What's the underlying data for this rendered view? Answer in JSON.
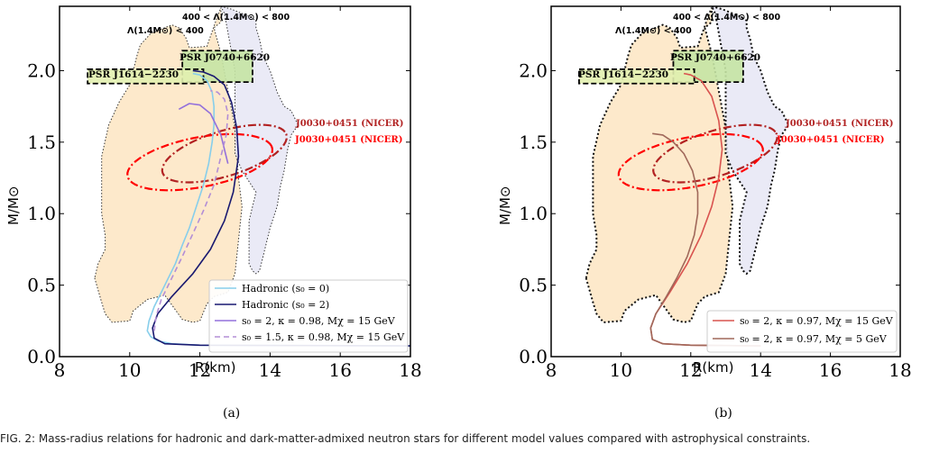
{
  "caption": "FIG. 2: Mass-radius relations for hadronic and dark-matter-admixed neutron stars for different model values compared with astrophysical constraints.",
  "chart_data": [
    {
      "type": "line",
      "panel_label": "(a)",
      "xlabel": "R(km)",
      "ylabel": "M/M⊙",
      "xlim": [
        8,
        18
      ],
      "ylim": [
        0,
        2.45
      ],
      "xticks": [
        8,
        10,
        12,
        14,
        16,
        18
      ],
      "yticks": [
        0.0,
        0.5,
        1.0,
        1.5,
        2.0
      ],
      "ytick_labels": [
        "0.0",
        "0.5",
        "1.0",
        "1.5",
        "2.0"
      ],
      "legend_position": "lower-right",
      "regions": [
        {
          "name": "Λ(1.4M⊙) < 400",
          "color": "#fde8c8",
          "edge": "#333333",
          "x": [
            9.0,
            9.2,
            9.3,
            9.5,
            10.0,
            10.1,
            10.5,
            11.0,
            11.5,
            11.8,
            12.0,
            12.2,
            12.4,
            12.8,
            13.0,
            13.2,
            13.1,
            13.0,
            12.6,
            12.4,
            12.6,
            12.6,
            12.6,
            12.5,
            12.4,
            12.3,
            12.2,
            11.7,
            11.6,
            11.4,
            11.2,
            11.0,
            10.6,
            10.3,
            10.2,
            10.1,
            10.0,
            9.7,
            9.4,
            9.2,
            9.2,
            9.2,
            9.3,
            9.3,
            9.1,
            9.0
          ],
          "y": [
            0.55,
            0.38,
            0.3,
            0.24,
            0.25,
            0.32,
            0.4,
            0.43,
            0.26,
            0.24,
            0.25,
            0.37,
            0.42,
            0.45,
            0.58,
            1.05,
            1.25,
            1.6,
            2.12,
            2.3,
            2.34,
            2.4,
            2.44,
            2.38,
            2.31,
            2.24,
            2.17,
            2.16,
            2.23,
            2.3,
            2.32,
            2.3,
            2.26,
            2.18,
            2.1,
            2.0,
            1.9,
            1.78,
            1.62,
            1.4,
            1.2,
            1.0,
            0.85,
            0.75,
            0.65,
            0.55
          ]
        },
        {
          "name": "400 < Λ(1.4M⊙) < 800",
          "color": "#e6e6f5",
          "edge": "#333333",
          "x": [
            12.6,
            12.9,
            13.4,
            13.6,
            13.6,
            13.7,
            13.8,
            14.0,
            14.2,
            14.4,
            14.6,
            14.8,
            14.6,
            14.5,
            14.4,
            14.3,
            14.2,
            14.0,
            13.8,
            13.7,
            13.6,
            13.5,
            13.4,
            13.4,
            13.6,
            13.2,
            13.0,
            13.0,
            12.7
          ],
          "y": [
            2.45,
            2.43,
            2.38,
            2.35,
            2.3,
            2.22,
            2.1,
            2.0,
            1.85,
            1.75,
            1.72,
            1.62,
            1.55,
            1.45,
            1.3,
            1.2,
            1.05,
            0.9,
            0.7,
            0.6,
            0.58,
            0.6,
            0.65,
            0.95,
            1.15,
            1.3,
            1.42,
            2.0,
            2.4
          ]
        }
      ],
      "psr_boxes": [
        {
          "label": "PSR J0740+6620",
          "x": [
            11.5,
            13.5
          ],
          "y": [
            1.92,
            2.14
          ],
          "color": "#c5e4a4"
        },
        {
          "label": "PSR J1614−2230",
          "x": [
            8.8,
            12.1
          ],
          "y": [
            1.91,
            2.01
          ],
          "color": "#e2f0b0"
        }
      ],
      "nicer_contours": [
        {
          "label": "J0030+0451 (NICER)",
          "color": "#b22222",
          "cx": 12.7,
          "cy": 1.42,
          "a": 1.95,
          "b": 0.15,
          "angle": 27.8,
          "tip": [
            14.6,
            1.65
          ]
        },
        {
          "label": "J0030+0451 (NICER)",
          "color": "#ff0000",
          "cx": 12.0,
          "cy": 1.36,
          "a": 2.15,
          "b": 0.17,
          "angle": 18.2,
          "tip": [
            14.5,
            1.6
          ]
        }
      ],
      "series": [
        {
          "name": "Hadronic (s₀ = 0)",
          "color": "#87ceeb",
          "dash": "",
          "x": [
            18.0,
            12.0,
            11.2,
            10.8,
            10.6,
            10.5,
            10.55,
            10.7,
            10.9,
            11.1,
            11.3,
            11.5,
            11.7,
            11.9,
            12.1,
            12.25,
            12.35,
            12.4,
            12.4,
            12.35,
            12.2,
            12.0,
            11.8
          ],
          "y": [
            0.075,
            0.08,
            0.09,
            0.11,
            0.14,
            0.18,
            0.25,
            0.35,
            0.45,
            0.55,
            0.65,
            0.78,
            0.9,
            1.05,
            1.2,
            1.35,
            1.5,
            1.62,
            1.75,
            1.85,
            1.93,
            1.97,
            1.98
          ]
        },
        {
          "name": "Hadronic (s₀ = 2)",
          "color": "#191970",
          "dash": "",
          "x": [
            18.0,
            12.0,
            11.0,
            10.7,
            10.65,
            10.8,
            11.2,
            11.8,
            12.3,
            12.7,
            12.95,
            13.1,
            13.05,
            12.9,
            12.7,
            12.4,
            12.1,
            11.8
          ],
          "y": [
            0.075,
            0.08,
            0.09,
            0.13,
            0.2,
            0.3,
            0.42,
            0.58,
            0.75,
            0.95,
            1.15,
            1.4,
            1.6,
            1.78,
            1.9,
            1.96,
            1.99,
            2.0
          ]
        },
        {
          "name": "s₀ = 2, κ = 0.98, Mχ = 15 GeV",
          "color": "#9370db",
          "dash": "",
          "x": [
            12.8,
            12.6,
            12.3,
            12.0,
            11.7,
            11.4
          ],
          "y": [
            1.35,
            1.55,
            1.7,
            1.76,
            1.77,
            1.73
          ]
        },
        {
          "name": "s₀ = 1.5, κ = 0.98, Mχ = 15 GeV",
          "color": "#b38ed6",
          "dash": "6,4",
          "x": [
            10.7,
            10.75,
            10.9,
            11.2,
            11.5,
            11.8,
            12.1,
            12.4,
            12.6,
            12.75,
            12.8,
            12.7,
            12.5,
            12.3
          ],
          "y": [
            0.18,
            0.28,
            0.4,
            0.55,
            0.7,
            0.86,
            1.02,
            1.2,
            1.4,
            1.55,
            1.7,
            1.8,
            1.85,
            1.86
          ]
        }
      ]
    },
    {
      "type": "line",
      "panel_label": "(b)",
      "xlabel": "R(km)",
      "ylabel": "M/M⊙",
      "xlim": [
        8,
        18
      ],
      "ylim": [
        0,
        2.45
      ],
      "xticks": [
        8,
        10,
        12,
        14,
        16,
        18
      ],
      "yticks": [
        0.0,
        0.5,
        1.0,
        1.5,
        2.0
      ],
      "ytick_labels": [
        "0.0",
        "0.5",
        "1.0",
        "1.5",
        "2.0"
      ],
      "legend_position": "lower-right",
      "regions": [
        {
          "name": "Λ(1.4M⊙) < 400",
          "color": "#fde8c8",
          "edge": "#111111",
          "x": [
            9.0,
            9.2,
            9.3,
            9.5,
            10.0,
            10.1,
            10.5,
            11.0,
            11.5,
            11.8,
            12.0,
            12.2,
            12.4,
            12.8,
            13.0,
            13.2,
            13.1,
            13.0,
            12.6,
            12.4,
            12.6,
            12.6,
            12.6,
            12.5,
            12.4,
            12.3,
            12.2,
            11.7,
            11.6,
            11.4,
            11.2,
            11.0,
            10.6,
            10.3,
            10.2,
            10.1,
            10.0,
            9.7,
            9.4,
            9.2,
            9.2,
            9.2,
            9.3,
            9.3,
            9.1,
            9.0
          ],
          "y": [
            0.55,
            0.38,
            0.3,
            0.24,
            0.25,
            0.32,
            0.4,
            0.43,
            0.26,
            0.24,
            0.25,
            0.37,
            0.42,
            0.45,
            0.58,
            1.05,
            1.25,
            1.6,
            2.12,
            2.3,
            2.34,
            2.4,
            2.44,
            2.38,
            2.31,
            2.24,
            2.17,
            2.16,
            2.23,
            2.3,
            2.32,
            2.3,
            2.26,
            2.18,
            2.1,
            2.0,
            1.9,
            1.78,
            1.62,
            1.4,
            1.2,
            1.0,
            0.85,
            0.75,
            0.65,
            0.55
          ]
        },
        {
          "name": "400 < Λ(1.4M⊙) < 800",
          "color": "#e6e6f5",
          "edge": "#111111",
          "x": [
            12.6,
            12.9,
            13.4,
            13.6,
            13.6,
            13.7,
            13.8,
            14.0,
            14.2,
            14.4,
            14.6,
            14.8,
            14.6,
            14.5,
            14.4,
            14.3,
            14.2,
            14.0,
            13.8,
            13.7,
            13.6,
            13.5,
            13.4,
            13.4,
            13.6,
            13.2,
            13.0,
            13.0,
            12.7
          ],
          "y": [
            2.45,
            2.43,
            2.38,
            2.35,
            2.3,
            2.22,
            2.1,
            2.0,
            1.85,
            1.75,
            1.72,
            1.62,
            1.55,
            1.45,
            1.3,
            1.2,
            1.05,
            0.9,
            0.7,
            0.6,
            0.58,
            0.6,
            0.65,
            0.95,
            1.15,
            1.3,
            1.42,
            2.0,
            2.4
          ]
        }
      ],
      "psr_boxes": [
        {
          "label": "PSR J0740+6620",
          "x": [
            11.5,
            13.5
          ],
          "y": [
            1.92,
            2.14
          ],
          "color": "#c5e4a4"
        },
        {
          "label": "PSR J1614−2230",
          "x": [
            8.8,
            12.1
          ],
          "y": [
            1.91,
            2.01
          ],
          "color": "#e2f0b0"
        }
      ],
      "nicer_contours": [
        {
          "label": "J0030+0451 (NICER)",
          "color": "#b22222",
          "cx": 12.7,
          "cy": 1.42,
          "a": 1.95,
          "b": 0.15,
          "angle": 27.8,
          "tip": [
            14.6,
            1.65
          ]
        },
        {
          "label": "J0030+0451 (NICER)",
          "color": "#ff0000",
          "cx": 12.0,
          "cy": 1.36,
          "a": 2.15,
          "b": 0.17,
          "angle": 18.2,
          "tip": [
            14.5,
            1.6
          ]
        }
      ],
      "series": [
        {
          "name": "s₀ = 2, κ = 0.97, Mχ = 15 GeV",
          "color": "#d9534f",
          "dash": "",
          "x": [
            14.0,
            12.0,
            11.2,
            10.9,
            10.85,
            11.0,
            11.4,
            11.9,
            12.3,
            12.6,
            12.8,
            12.9,
            12.8,
            12.6,
            12.3,
            12.0,
            11.8
          ],
          "y": [
            0.075,
            0.08,
            0.09,
            0.12,
            0.2,
            0.3,
            0.45,
            0.65,
            0.85,
            1.05,
            1.25,
            1.45,
            1.65,
            1.82,
            1.93,
            1.97,
            1.98
          ]
        },
        {
          "name": "s₀ = 2, κ = 0.97, Mχ = 5 GeV",
          "color": "#a0685a",
          "dash": "",
          "x": [
            14.0,
            12.0,
            11.2,
            10.9,
            10.85,
            11.0,
            11.3,
            11.6,
            11.9,
            12.1,
            12.2,
            12.2,
            12.05,
            11.8,
            11.5,
            11.2,
            10.9
          ],
          "y": [
            0.075,
            0.08,
            0.09,
            0.12,
            0.2,
            0.3,
            0.42,
            0.55,
            0.7,
            0.85,
            1.0,
            1.15,
            1.3,
            1.42,
            1.5,
            1.55,
            1.56
          ]
        }
      ]
    }
  ]
}
